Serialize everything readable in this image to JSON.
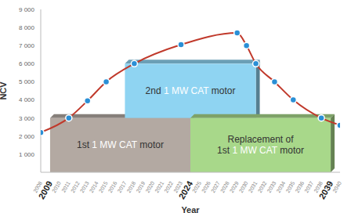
{
  "chart_data": {
    "type": "line",
    "x_label": "Year",
    "y_label": "NCV",
    "x": [
      2008,
      2011,
      2013,
      2015,
      2018,
      2023,
      2029,
      2030,
      2031,
      2033,
      2035,
      2038,
      2040
    ],
    "series": [
      {
        "name": "NCV",
        "color": "#c0392b",
        "marker": "circle",
        "values": [
          2200,
          3000,
          3950,
          5000,
          6000,
          7050,
          7700,
          7000,
          6000,
          5000,
          4000,
          3000,
          2600
        ]
      }
    ],
    "xlim": [
      2008,
      2040
    ],
    "xticks": [
      2008,
      2009,
      2010,
      2011,
      2012,
      2013,
      2014,
      2015,
      2016,
      2017,
      2018,
      2019,
      2020,
      2021,
      2022,
      2023,
      2024,
      2025,
      2026,
      2027,
      2028,
      2029,
      2030,
      2031,
      2032,
      2033,
      2034,
      2035,
      2036,
      2037,
      2038,
      2039,
      2040
    ],
    "ylim": [
      0,
      9000
    ],
    "yticks": [
      {
        "value": 1000,
        "label": "1 000"
      },
      {
        "value": 2000,
        "label": "2 000"
      },
      {
        "value": 3000,
        "label": "3 000"
      },
      {
        "value": 4000,
        "label": "4 000"
      },
      {
        "value": 5000,
        "label": "5 000"
      },
      {
        "value": 6000,
        "label": "6 000"
      },
      {
        "value": 7000,
        "label": "7 000"
      },
      {
        "value": 8000,
        "label": "8 000"
      },
      {
        "value": 9000,
        "label": "9 000"
      }
    ],
    "grid": false,
    "boxes": [
      {
        "label": [
          [
            "1st ",
            "1 MW CAT",
            " motor"
          ]
        ],
        "x": [
          2009,
          2024
        ],
        "y": [
          0,
          3000
        ],
        "color": "#b3a9a2"
      },
      {
        "label": [
          [
            "2nd ",
            "1 MW CAT",
            " motor"
          ]
        ],
        "x": [
          2017,
          2031
        ],
        "y": [
          3000,
          6000
        ],
        "color": "#8fd4f2"
      },
      {
        "label": [
          [
            "Replacement of"
          ],
          [
            "1st ",
            "1 MW CAT",
            " motor"
          ]
        ],
        "x": [
          2024,
          2039
        ],
        "y": [
          0,
          3000
        ],
        "color": "#a8d88a"
      }
    ]
  }
}
